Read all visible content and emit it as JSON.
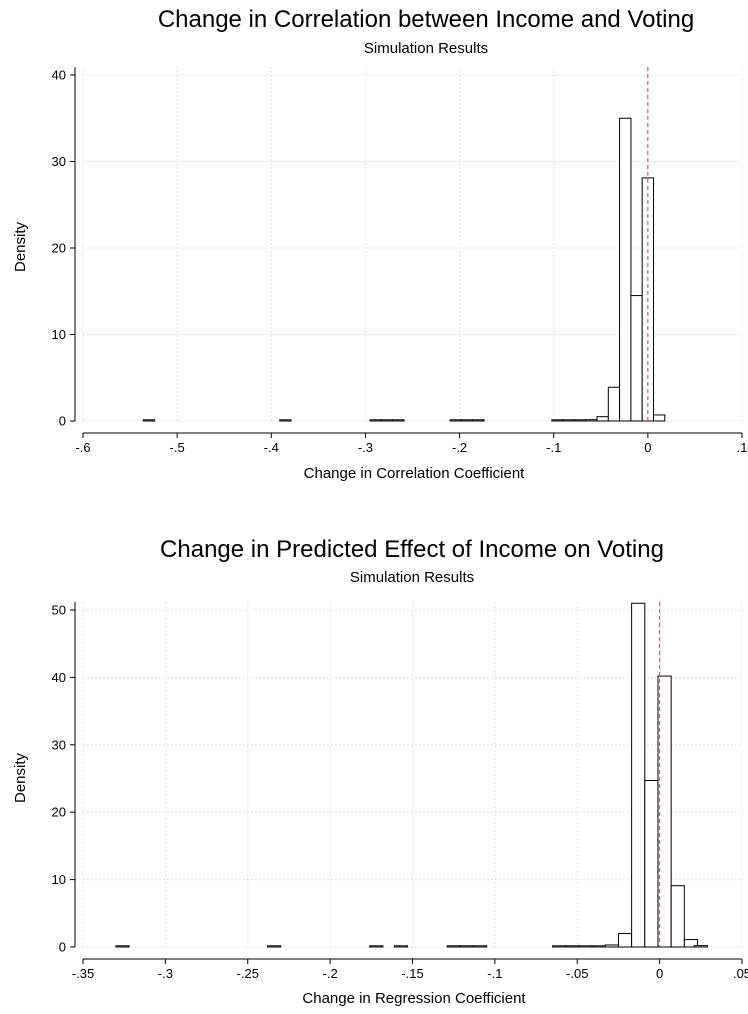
{
  "chart_data": [
    {
      "type": "bar",
      "title": "Change in Correlation between Income and Voting",
      "subtitle": "Simulation Results",
      "xlabel": "Change in Correlation Coefficient",
      "ylabel": "Density",
      "xlim": [
        -0.6,
        0.1
      ],
      "ylim": [
        0,
        40
      ],
      "xticks": [
        -0.6,
        -0.5,
        -0.4,
        -0.3,
        -0.2,
        -0.1,
        0,
        0.1
      ],
      "xtick_labels": [
        "-.6",
        "-.5",
        "-.4",
        "-.3",
        "-.2",
        "-.1",
        "0",
        ".1"
      ],
      "yticks": [
        0,
        10,
        20,
        30,
        40
      ],
      "ytick_labels": [
        "0",
        "10",
        "20",
        "30",
        "40"
      ],
      "grid": true,
      "reference_line_x": 0,
      "bin_width": 0.01205,
      "bins": [
        {
          "x": -0.53,
          "y": 0.1
        },
        {
          "x": -0.385,
          "y": 0.1
        },
        {
          "x": -0.289,
          "y": 0.1
        },
        {
          "x": -0.277,
          "y": 0.1
        },
        {
          "x": -0.265,
          "y": 0.1
        },
        {
          "x": -0.204,
          "y": 0.1
        },
        {
          "x": -0.192,
          "y": 0.1
        },
        {
          "x": -0.18,
          "y": 0.1
        },
        {
          "x": -0.096,
          "y": 0.1
        },
        {
          "x": -0.084,
          "y": 0.1
        },
        {
          "x": -0.072,
          "y": 0.1
        },
        {
          "x": -0.06,
          "y": 0.15
        },
        {
          "x": -0.048,
          "y": 0.5
        },
        {
          "x": -0.036,
          "y": 3.9
        },
        {
          "x": -0.024,
          "y": 35
        },
        {
          "x": -0.012,
          "y": 14.5
        },
        {
          "x": 0.0,
          "y": 28.1
        },
        {
          "x": 0.012,
          "y": 0.7
        }
      ]
    },
    {
      "type": "bar",
      "title": "Change in Predicted Effect of Income on Voting",
      "subtitle": "Simulation Results",
      "xlabel": "Change in Regression Coefficient",
      "ylabel": "Density",
      "xlim": [
        -0.35,
        0.05
      ],
      "ylim": [
        0,
        50
      ],
      "xticks": [
        -0.35,
        -0.3,
        -0.25,
        -0.2,
        -0.15,
        -0.1,
        -0.05,
        0,
        0.05
      ],
      "xtick_labels": [
        "-.35",
        "-.3",
        "-.25",
        "-.2",
        "-.15",
        "-.1",
        "-.05",
        "0",
        ".05"
      ],
      "yticks": [
        0,
        10,
        20,
        30,
        40,
        50
      ],
      "ytick_labels": [
        "0",
        "10",
        "20",
        "30",
        "40",
        "50"
      ],
      "grid": true,
      "reference_line_x": 0,
      "bin_width": 0.008,
      "bins": [
        {
          "x": -0.326,
          "y": 0.1
        },
        {
          "x": -0.234,
          "y": 0.1
        },
        {
          "x": -0.172,
          "y": 0.1
        },
        {
          "x": -0.157,
          "y": 0.1
        },
        {
          "x": -0.125,
          "y": 0.1
        },
        {
          "x": -0.117,
          "y": 0.1
        },
        {
          "x": -0.109,
          "y": 0.1
        },
        {
          "x": -0.061,
          "y": 0.1
        },
        {
          "x": -0.053,
          "y": 0.1
        },
        {
          "x": -0.045,
          "y": 0.1
        },
        {
          "x": -0.037,
          "y": 0.15
        },
        {
          "x": -0.029,
          "y": 0.3
        },
        {
          "x": -0.021,
          "y": 2.0
        },
        {
          "x": -0.013,
          "y": 51
        },
        {
          "x": -0.005,
          "y": 24.7
        },
        {
          "x": 0.003,
          "y": 40.2
        },
        {
          "x": 0.011,
          "y": 9.1
        },
        {
          "x": 0.019,
          "y": 1.1
        },
        {
          "x": 0.025,
          "y": 0.2
        }
      ]
    }
  ]
}
